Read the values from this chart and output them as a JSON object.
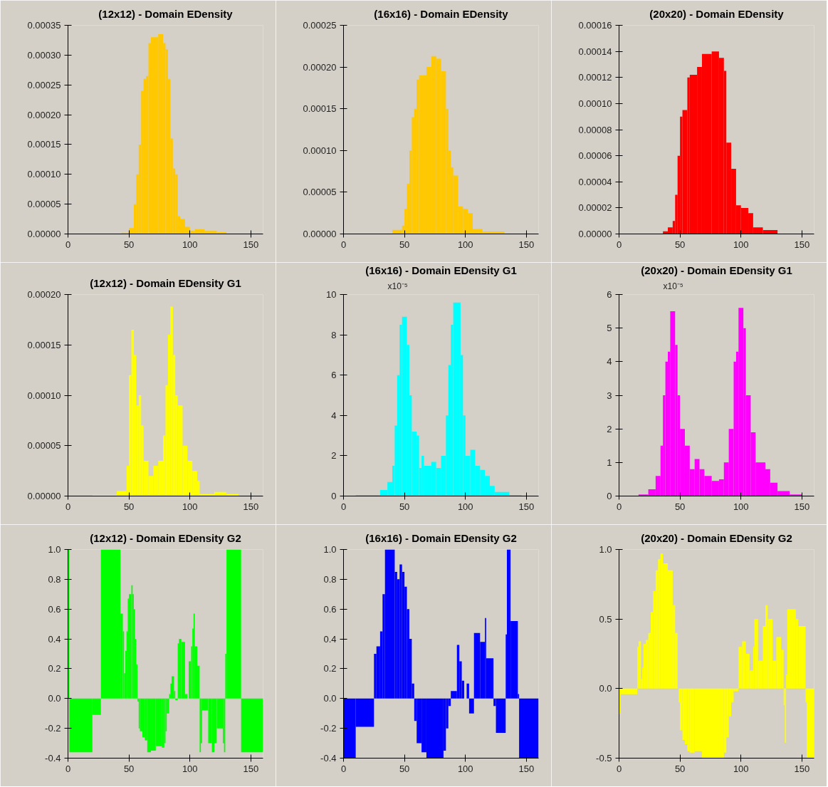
{
  "chart_data": [
    {
      "type": "histogram",
      "title": "(12x12) - Domain EDensity",
      "color": "#ffc800",
      "xlim": [
        0,
        160
      ],
      "xticks": [
        0,
        50,
        100,
        150
      ],
      "ylim": [
        0,
        0.00035
      ],
      "yticks": [
        {
          "value": 0,
          "label": "0.00000"
        },
        {
          "value": 5e-05,
          "label": "0.00005"
        },
        {
          "value": 0.0001,
          "label": "0.00010"
        },
        {
          "value": 0.00015,
          "label": "0.00015"
        },
        {
          "value": 0.0002,
          "label": "0.00020"
        },
        {
          "value": 0.00025,
          "label": "0.00025"
        },
        {
          "value": 0.0003,
          "label": "0.00030"
        },
        {
          "value": 0.00035,
          "label": "0.00035"
        }
      ],
      "bins": [
        44,
        50,
        54,
        56,
        58,
        60,
        62,
        64,
        66,
        68,
        74,
        78,
        80,
        82,
        84,
        86,
        88,
        90,
        92,
        96,
        100,
        104,
        112,
        122,
        130
      ],
      "values": [
        2e-06,
        1e-05,
        5e-05,
        0.0001,
        0.00015,
        0.00024,
        0.00026,
        0.000265,
        0.00032,
        0.00033,
        0.000335,
        0.00032,
        0.00031,
        0.00026,
        0.00016,
        0.00011,
        0.0001,
        3e-05,
        2.5e-05,
        1.2e-05,
        5e-06,
        8e-06,
        5e-06,
        3e-06
      ]
    },
    {
      "type": "histogram",
      "title": "(16x16) - Domain EDensity",
      "color": "#ffc800",
      "xlim": [
        0,
        160
      ],
      "xticks": [
        0,
        50,
        100,
        150
      ],
      "ylim": [
        0,
        0.00025
      ],
      "yticks": [
        {
          "value": 0,
          "label": "0.00000"
        },
        {
          "value": 5e-05,
          "label": "0.00005"
        },
        {
          "value": 0.0001,
          "label": "0.00010"
        },
        {
          "value": 0.00015,
          "label": "0.00015"
        },
        {
          "value": 0.0002,
          "label": "0.00020"
        },
        {
          "value": 0.00025,
          "label": "0.00025"
        }
      ],
      "bins": [
        40,
        48,
        50,
        52,
        54,
        56,
        58,
        60,
        62,
        68,
        72,
        76,
        80,
        84,
        86,
        88,
        90,
        94,
        98,
        102,
        106,
        114,
        132
      ],
      "values": [
        5e-06,
        1e-05,
        3e-05,
        6e-05,
        0.0001,
        0.00014,
        0.00015,
        0.000185,
        0.00019,
        0.0002,
        0.000213,
        0.00021,
        0.000195,
        0.00015,
        0.0001,
        8e-05,
        7e-05,
        3.3e-05,
        3e-05,
        2.5e-05,
        6e-06,
        3e-06
      ]
    },
    {
      "type": "histogram",
      "title": "(20x20) - Domain EDensity",
      "color": "#ff0000",
      "xlim": [
        0,
        160
      ],
      "xticks": [
        0,
        50,
        100,
        150
      ],
      "ylim": [
        0,
        0.00016
      ],
      "yticks": [
        {
          "value": 0,
          "label": "0.00000"
        },
        {
          "value": 2e-05,
          "label": "0.00002"
        },
        {
          "value": 4e-05,
          "label": "0.00004"
        },
        {
          "value": 6e-05,
          "label": "0.00006"
        },
        {
          "value": 8e-05,
          "label": "0.00008"
        },
        {
          "value": 0.0001,
          "label": "0.00010"
        },
        {
          "value": 0.00012,
          "label": "0.00012"
        },
        {
          "value": 0.00014,
          "label": "0.00014"
        },
        {
          "value": 0.00016,
          "label": "0.00016"
        }
      ],
      "bins": [
        36,
        40,
        44,
        46,
        48,
        50,
        52,
        56,
        58,
        64,
        68,
        76,
        82,
        86,
        88,
        92,
        96,
        100,
        106,
        110,
        118,
        130
      ],
      "values": [
        2e-06,
        5e-06,
        1e-05,
        3e-05,
        6e-05,
        9e-05,
        9.5e-05,
        0.00012,
        0.000122,
        0.000128,
        0.000138,
        0.00014,
        0.000135,
        0.000125,
        7e-05,
        5e-05,
        2.2e-05,
        2e-05,
        1.6e-05,
        5e-06,
        3e-06
      ]
    },
    {
      "type": "histogram",
      "title": "(12x12) - Domain EDensity G1",
      "color": "#ffff00",
      "xlim": [
        0,
        160
      ],
      "xticks": [
        0,
        50,
        100,
        150
      ],
      "ylim": [
        0,
        0.0002
      ],
      "yticks": [
        {
          "value": 0,
          "label": "0.00000"
        },
        {
          "value": 5e-05,
          "label": "0.00005"
        },
        {
          "value": 0.0001,
          "label": "0.00010"
        },
        {
          "value": 0.00015,
          "label": "0.00015"
        },
        {
          "value": 0.0002,
          "label": "0.00020"
        }
      ],
      "bins": [
        20,
        40,
        48,
        50,
        52,
        54,
        56,
        58,
        60,
        62,
        66,
        70,
        74,
        78,
        80,
        82,
        84,
        86,
        88,
        90,
        94,
        98,
        102,
        106,
        108,
        120,
        130,
        140
      ],
      "values": [
        1e-06,
        5e-06,
        3e-05,
        0.00012,
        0.000165,
        0.00014,
        9e-05,
        0.0001,
        7e-05,
        3.5e-05,
        2e-05,
        3e-05,
        3.5e-05,
        6e-05,
        0.00011,
        0.00016,
        0.000188,
        0.00014,
        0.0001,
        9e-05,
        5e-05,
        3.5e-05,
        2.5e-05,
        1.5e-05,
        2e-06,
        4e-06,
        2e-06
      ]
    },
    {
      "type": "histogram",
      "title": "(16x16) - Domain EDensity G1",
      "annotations": [
        "x10⁻⁵"
      ],
      "color": "#00ffff",
      "xlim": [
        0,
        160
      ],
      "xticks": [
        0,
        50,
        100,
        150
      ],
      "ylim": [
        0,
        10
      ],
      "yticks": [
        0,
        2,
        4,
        6,
        8,
        10
      ],
      "bins": [
        10,
        30,
        36,
        40,
        42,
        44,
        46,
        48,
        52,
        54,
        56,
        60,
        62,
        64,
        66,
        72,
        76,
        80,
        84,
        86,
        88,
        90,
        96,
        98,
        100,
        104,
        108,
        112,
        116,
        120,
        124,
        136,
        146
      ],
      "values": [
        0.05,
        0.3,
        0.7,
        1.5,
        3.5,
        6,
        8.5,
        8.9,
        7.5,
        5,
        3.2,
        3,
        1.4,
        2,
        1.5,
        1.7,
        1.4,
        2,
        4,
        6.5,
        8.5,
        9.6,
        7,
        4,
        2,
        2.3,
        1.5,
        1.3,
        1,
        0.5,
        0.2,
        0.05
      ]
    },
    {
      "type": "histogram",
      "title": "(20x20) - Domain EDensity G1",
      "annotations": [
        "x10⁻⁵"
      ],
      "color": "#ff00ff",
      "xlim": [
        0,
        160
      ],
      "xticks": [
        0,
        50,
        100,
        150
      ],
      "ylim": [
        0,
        6
      ],
      "yticks": [
        0,
        1,
        2,
        3,
        4,
        5,
        6
      ],
      "bins": [
        16,
        24,
        30,
        34,
        36,
        38,
        40,
        42,
        46,
        48,
        50,
        54,
        58,
        62,
        66,
        70,
        76,
        82,
        86,
        90,
        94,
        96,
        98,
        102,
        104,
        108,
        112,
        120,
        124,
        130,
        140,
        150
      ],
      "values": [
        0.05,
        0.2,
        0.6,
        1.5,
        3,
        4,
        4.3,
        5.5,
        4.5,
        3,
        2,
        1.5,
        0.8,
        1.1,
        0.8,
        0.6,
        0.45,
        0.5,
        1,
        2,
        4,
        4.3,
        5.6,
        5,
        3,
        1.9,
        1,
        0.8,
        0.4,
        0.15,
        0.05
      ]
    },
    {
      "type": "histogram",
      "title": "(12x12) - Domain EDensity G2",
      "color": "#00ff00",
      "xlim": [
        0,
        160
      ],
      "xticks": [
        0,
        50,
        100,
        150
      ],
      "ylim": [
        -0.4,
        1.0
      ],
      "yticks": [
        {
          "value": -0.4,
          "label": "-0.4"
        },
        {
          "value": -0.2,
          "label": "-0.2"
        },
        {
          "value": 0,
          "label": "0.0"
        },
        {
          "value": 0.2,
          "label": "0.2"
        },
        {
          "value": 0.4,
          "label": "0.4"
        },
        {
          "value": 0.6,
          "label": "0.6"
        },
        {
          "value": 0.8,
          "label": "0.8"
        },
        {
          "value": 1.0,
          "label": "1.0"
        }
      ],
      "bins": [
        0,
        1,
        20,
        27,
        43,
        45,
        46,
        47,
        48,
        49,
        50,
        52,
        53,
        54,
        55,
        56,
        57,
        58,
        59,
        61,
        63,
        65,
        68,
        72,
        77,
        79,
        80,
        81,
        83,
        84,
        85,
        87,
        88,
        90,
        91,
        93,
        96,
        98,
        99,
        101,
        102,
        103,
        104,
        106,
        108,
        109,
        110,
        115,
        118,
        120,
        122,
        127,
        128,
        129,
        130,
        142,
        160
      ],
      "values": [
        1.0,
        -0.36,
        -0.11,
        1.0,
        0.57,
        0.45,
        0.17,
        0.32,
        0.45,
        0.67,
        0.7,
        0.76,
        0.7,
        0.6,
        0.4,
        0.23,
        -0.02,
        -0.2,
        -0.22,
        -0.26,
        -0.28,
        -0.36,
        -0.35,
        -0.32,
        -0.33,
        -0.3,
        -0.22,
        -0.1,
        0.03,
        0.1,
        0.15,
        0.05,
        -0.01,
        0.37,
        0.4,
        0.38,
        0.03,
        0,
        0.25,
        0.35,
        0.47,
        0.57,
        0.35,
        0.22,
        -0.36,
        -0.3,
        -0.08,
        -0.3,
        -0.36,
        -0.3,
        -0.2,
        -0.3,
        -0.36,
        0.3,
        1.0,
        -0.36
      ]
    },
    {
      "type": "histogram",
      "title": "(16x16) - Domain EDensity G2",
      "color": "#0000ff",
      "xlim": [
        0,
        160
      ],
      "xticks": [
        0,
        50,
        100,
        150
      ],
      "ylim": [
        -0.4,
        1.0
      ],
      "yticks": [
        {
          "value": -0.4,
          "label": "-0.4"
        },
        {
          "value": -0.2,
          "label": "-0.2"
        },
        {
          "value": 0,
          "label": "0.0"
        },
        {
          "value": 0.2,
          "label": "0.2"
        },
        {
          "value": 0.4,
          "label": "0.4"
        },
        {
          "value": 0.6,
          "label": "0.6"
        },
        {
          "value": 0.8,
          "label": "0.8"
        },
        {
          "value": 1.0,
          "label": "1.0"
        }
      ],
      "bins": [
        0,
        10,
        25,
        27,
        30,
        32,
        34,
        42,
        44,
        46,
        48,
        50,
        52,
        54,
        56,
        58,
        60,
        64,
        68,
        82,
        84,
        86,
        88,
        93,
        95,
        97,
        99,
        101,
        103,
        107,
        112,
        116,
        117,
        123,
        125,
        133,
        134,
        137,
        143,
        144,
        160
      ],
      "values": [
        -0.4,
        -0.19,
        0.3,
        0.35,
        0.45,
        0.7,
        1.0,
        0.85,
        0.8,
        0.9,
        0.85,
        0.75,
        0.6,
        0.4,
        0.1,
        -0.15,
        -0.3,
        -0.36,
        -0.4,
        -0.35,
        -0.2,
        -0.05,
        0.05,
        0.36,
        0.25,
        0.12,
        0.0,
        0.1,
        -0.1,
        0.44,
        0.38,
        0.54,
        0.27,
        -0.05,
        -0.23,
        0.43,
        1.0,
        0.52,
        0.03,
        -0.4
      ]
    },
    {
      "type": "histogram",
      "title": "(20x20) - Domain EDensity G2",
      "color": "#ffff00",
      "xlim": [
        0,
        160
      ],
      "xticks": [
        0,
        50,
        100,
        150
      ],
      "ylim": [
        -0.5,
        1.0
      ],
      "yticks": [
        {
          "value": -0.5,
          "label": "-0.5"
        },
        {
          "value": 0,
          "label": "0.0"
        },
        {
          "value": 0.5,
          "label": "0.5"
        },
        {
          "value": 1.0,
          "label": "1.0"
        }
      ],
      "bins": [
        0,
        1,
        15,
        16,
        18,
        19,
        20,
        22,
        24,
        26,
        28,
        30,
        32,
        34,
        36,
        40,
        44,
        46,
        48,
        49,
        50,
        52,
        54,
        56,
        58,
        62,
        68,
        86,
        88,
        90,
        92,
        94,
        98,
        101,
        104,
        107,
        110,
        111,
        114,
        118,
        120,
        122,
        126,
        129,
        133,
        135,
        136,
        137,
        138,
        145,
        147,
        153,
        154,
        160
      ],
      "values": [
        -0.18,
        -0.04,
        0.3,
        0.34,
        0.07,
        0.15,
        0.32,
        0.35,
        0.4,
        0.55,
        0.7,
        0.85,
        0.93,
        0.97,
        0.9,
        0.85,
        0.6,
        0.4,
        0.0,
        -0.1,
        -0.3,
        -0.37,
        -0.4,
        -0.45,
        -0.46,
        -0.45,
        -0.5,
        -0.46,
        -0.35,
        -0.2,
        -0.1,
        -0.02,
        0.3,
        0.34,
        0.25,
        0.13,
        0.3,
        0.5,
        0.2,
        0.45,
        0.6,
        0.5,
        0.2,
        0.37,
        0.28,
        -0.12,
        -0.39,
        0.1,
        0.57,
        0.5,
        0.45,
        -0.1,
        -0.5
      ]
    }
  ]
}
